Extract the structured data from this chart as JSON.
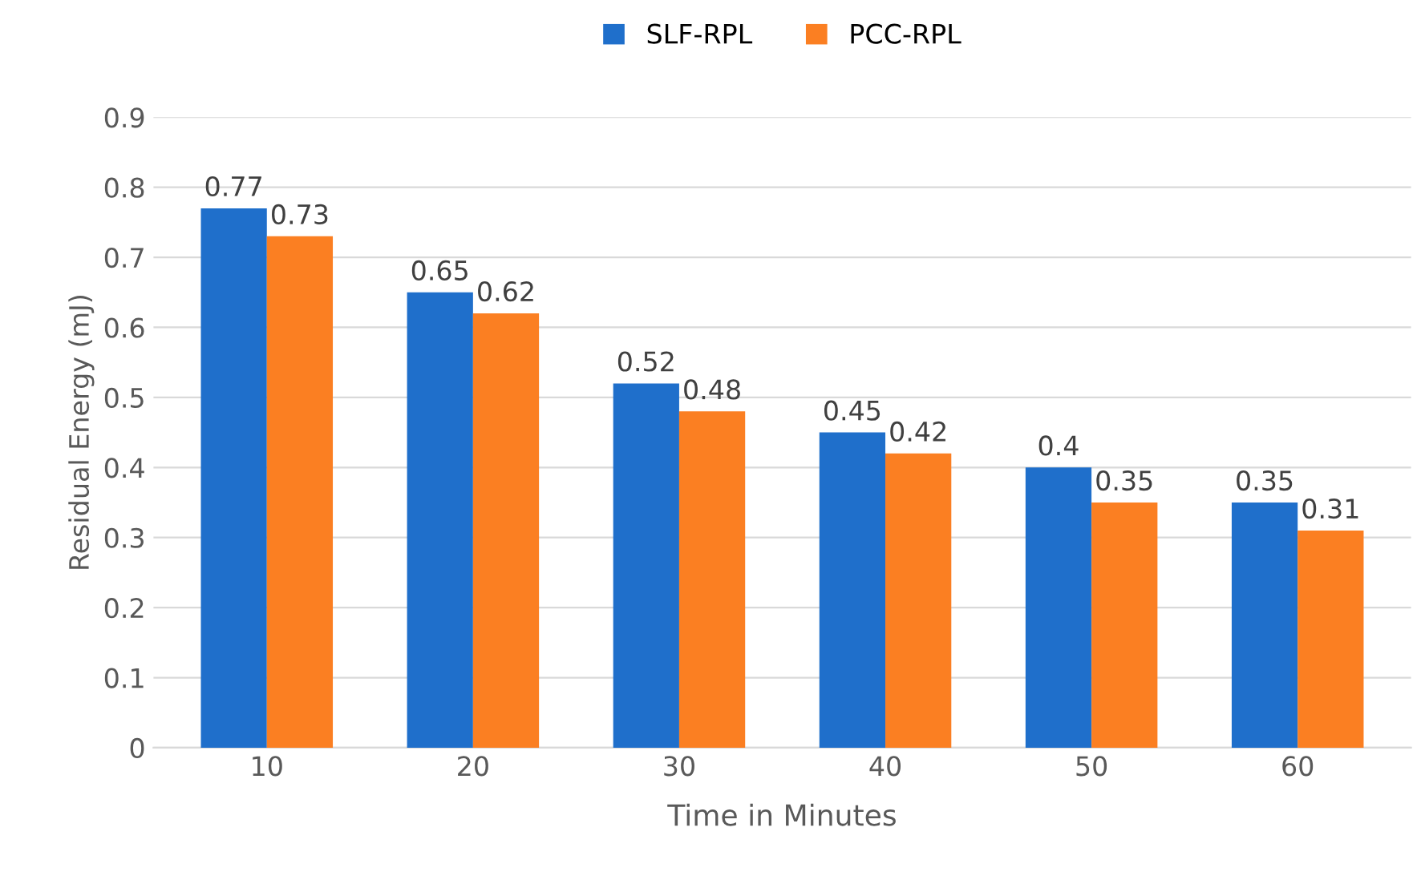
{
  "chart_data": {
    "type": "bar",
    "categories": [
      "10",
      "20",
      "30",
      "40",
      "50",
      "60"
    ],
    "series": [
      {
        "name": "SLF-RPL",
        "color": "#1f6fcb",
        "values": [
          0.77,
          0.65,
          0.52,
          0.45,
          0.4,
          0.35
        ]
      },
      {
        "name": "PCC-RPL",
        "color": "#fb7f22",
        "values": [
          0.73,
          0.62,
          0.48,
          0.42,
          0.35,
          0.31
        ]
      }
    ],
    "xlabel": "Time in Minutes",
    "ylabel": "Residual Energy (mJ)",
    "ylim": [
      0,
      0.9
    ],
    "yticks": [
      0,
      0.1,
      0.2,
      0.3,
      0.4,
      0.5,
      0.6,
      0.7,
      0.8,
      0.9
    ],
    "grid": "y",
    "legend": "top",
    "data_labels": true
  }
}
